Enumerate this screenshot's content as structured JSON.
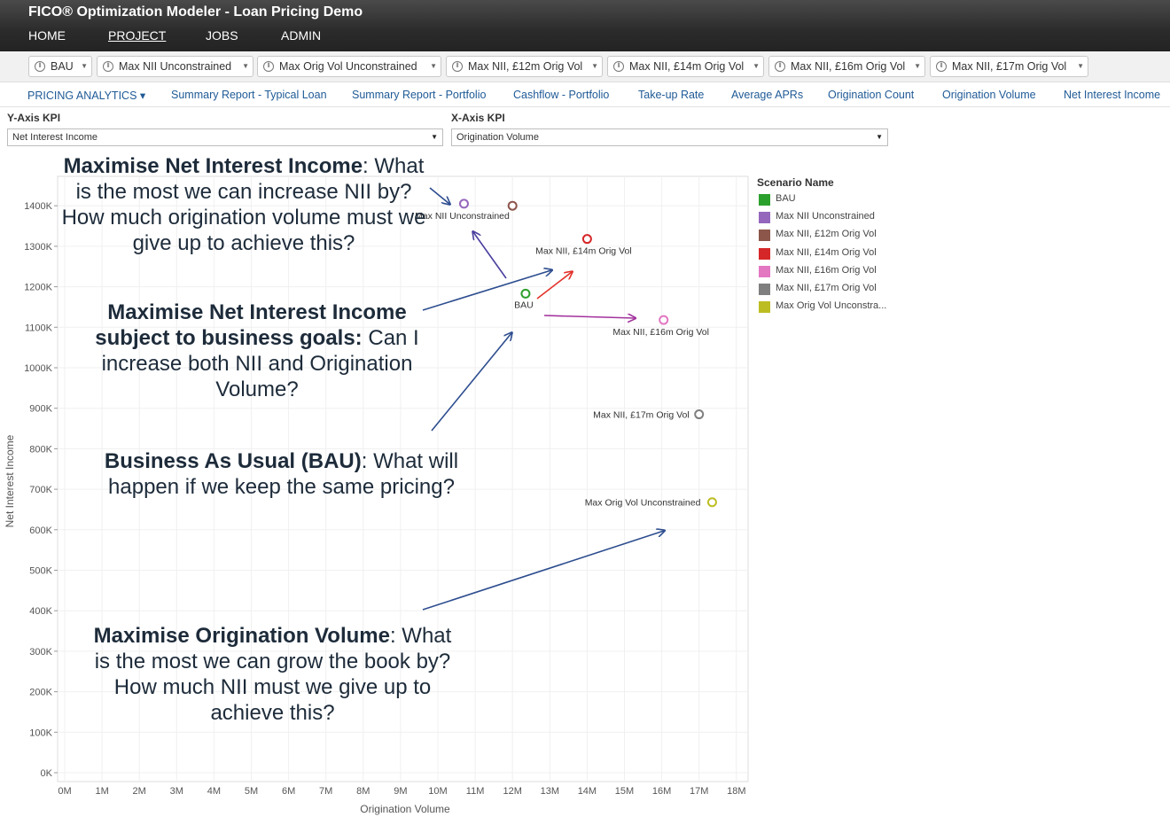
{
  "app": {
    "title": "FICO® Optimization Modeler - Loan Pricing Demo"
  },
  "nav": {
    "items": [
      {
        "label": "HOME",
        "active": false
      },
      {
        "label": "PROJECT",
        "active": true
      },
      {
        "label": "JOBS",
        "active": false
      },
      {
        "label": "ADMIN",
        "active": false
      }
    ]
  },
  "scenario_bar": {
    "scenarios": [
      "BAU",
      "Max NII Unconstrained",
      "Max Orig Vol Unconstrained",
      "Max NII, £12m Orig Vol",
      "Max NII, £14m Orig Vol",
      "Max NII, £16m Orig Vol",
      "Max NII, £17m Orig Vol"
    ]
  },
  "tabs": {
    "items": [
      "PRICING ANALYTICS ▾",
      "Summary Report - Typical Loan",
      "Summary Report - Portfolio",
      "Cashflow - Portfolio",
      "Take-up Rate",
      "Average APRs",
      "Origination Count",
      "Origination Volume",
      "Net Interest Income"
    ]
  },
  "kpi": {
    "y_label": "Y-Axis KPI",
    "y_value": "Net Interest Income",
    "x_label": "X-Axis KPI",
    "x_value": "Origination Volume"
  },
  "legend": {
    "title": "Scenario Name",
    "items": [
      {
        "label": "BAU",
        "color": "#2ca02c"
      },
      {
        "label": "Max NII Unconstrained",
        "color": "#9467bd"
      },
      {
        "label": "Max NII, £12m Orig Vol",
        "color": "#8c564b"
      },
      {
        "label": "Max NII, £14m Orig Vol",
        "color": "#d62728"
      },
      {
        "label": "Max NII, £16m Orig Vol",
        "color": "#e377c2"
      },
      {
        "label": "Max NII, £17m Orig Vol",
        "color": "#7f7f7f"
      },
      {
        "label": "Max Orig Vol Unconstra...",
        "color": "#bcbd22"
      }
    ]
  },
  "callouts": {
    "c1_bold": "Maximise Net Interest Income",
    "c1_rest": ": What is the most we can increase NII by? How much origination volume must we give up to achieve this?",
    "c2_bold": "Maximise Net Interest Income subject to business goals:",
    "c2_rest": " Can I increase both NII and Origination Volume?",
    "c3_bold": "Business As Usual (BAU)",
    "c3_rest": ": What will happen if we keep the same pricing?",
    "c4_bold": "Maximise Origination Volume",
    "c4_rest": ": What is the most we can grow the book by? How much NII must we give up to achieve this?"
  },
  "chart_data": {
    "type": "scatter",
    "xlabel": "Origination Volume",
    "ylabel": "Net Interest Income",
    "xlim": [
      0,
      18.4
    ],
    "ylim": [
      0,
      1420
    ],
    "x_ticks": [
      0,
      1,
      2,
      3,
      4,
      5,
      6,
      7,
      8,
      9,
      10,
      11,
      12,
      13,
      14,
      15,
      16,
      17,
      18
    ],
    "x_tick_labels": [
      "0M",
      "1M",
      "2M",
      "3M",
      "4M",
      "5M",
      "6M",
      "7M",
      "8M",
      "9M",
      "10M",
      "11M",
      "12M",
      "13M",
      "14M",
      "15M",
      "16M",
      "17M",
      "18M"
    ],
    "y_ticks": [
      0,
      100,
      200,
      300,
      400,
      500,
      600,
      700,
      800,
      900,
      1000,
      1100,
      1200,
      1300,
      1400
    ],
    "y_tick_labels": [
      "0K",
      "100K",
      "200K",
      "300K",
      "400K",
      "500K",
      "600K",
      "700K",
      "800K",
      "900K",
      "1000K",
      "1100K",
      "1200K",
      "1300K",
      "1400K"
    ],
    "grid": true,
    "legend_position": "right",
    "series": [
      {
        "name": "BAU",
        "color": "#2ca02c",
        "x": 12.35,
        "y": 1183,
        "label": "BAU"
      },
      {
        "name": "Max NII Unconstrained",
        "color": "#9467bd",
        "x": 10.7,
        "y": 1405,
        "label": "Max NII Unconstrained"
      },
      {
        "name": "Max NII, £12m Orig Vol",
        "color": "#8c564b",
        "x": 12.0,
        "y": 1400,
        "label": ""
      },
      {
        "name": "Max NII, £14m Orig Vol",
        "color": "#d62728",
        "x": 14.0,
        "y": 1318,
        "label": "Max NII, £14m Orig Vol"
      },
      {
        "name": "Max NII, £16m Orig Vol",
        "color": "#e377c2",
        "x": 16.05,
        "y": 1118,
        "label": "Max NII, £16m Orig Vol"
      },
      {
        "name": "Max NII, £17m Orig Vol",
        "color": "#7f7f7f",
        "x": 17.0,
        "y": 885,
        "label": "Max NII, £17m Orig Vol"
      },
      {
        "name": "Max Orig Vol Unconstrained",
        "color": "#bcbd22",
        "x": 17.35,
        "y": 668,
        "label": "Max Orig Vol Unconstrained"
      }
    ]
  }
}
